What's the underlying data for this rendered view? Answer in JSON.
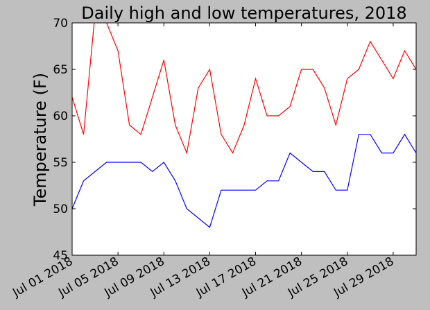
{
  "chart_data": {
    "type": "line",
    "title": "Daily high and low temperatures, 2018",
    "xlabel": "",
    "ylabel": "Temperature (F)",
    "x": [
      "2018-07-01",
      "2018-07-02",
      "2018-07-03",
      "2018-07-04",
      "2018-07-05",
      "2018-07-06",
      "2018-07-07",
      "2018-07-08",
      "2018-07-09",
      "2018-07-10",
      "2018-07-11",
      "2018-07-12",
      "2018-07-13",
      "2018-07-14",
      "2018-07-15",
      "2018-07-16",
      "2018-07-17",
      "2018-07-18",
      "2018-07-19",
      "2018-07-20",
      "2018-07-21",
      "2018-07-22",
      "2018-07-23",
      "2018-07-24",
      "2018-07-25",
      "2018-07-26",
      "2018-07-27",
      "2018-07-28",
      "2018-07-29",
      "2018-07-30",
      "2018-07-31"
    ],
    "x_range": [
      "2018-07-01",
      "2018-07-31"
    ],
    "xticks": [
      {
        "date": "2018-07-01",
        "label": "Jul 01 2018"
      },
      {
        "date": "2018-07-05",
        "label": "Jul 05 2018"
      },
      {
        "date": "2018-07-09",
        "label": "Jul 09 2018"
      },
      {
        "date": "2018-07-13",
        "label": "Jul 13 2018"
      },
      {
        "date": "2018-07-17",
        "label": "Jul 17 2018"
      },
      {
        "date": "2018-07-21",
        "label": "Jul 21 2018"
      },
      {
        "date": "2018-07-25",
        "label": "Jul 25 2018"
      },
      {
        "date": "2018-07-29",
        "label": "Jul 29 2018"
      }
    ],
    "ylim": [
      45,
      70
    ],
    "yticks": [
      45,
      50,
      55,
      60,
      65,
      70
    ],
    "grid": false,
    "series": [
      {
        "color": "#ff0000",
        "values": [
          62,
          58,
          71,
          70,
          67,
          59,
          58,
          62,
          66,
          59,
          56,
          63,
          65,
          58,
          56,
          59,
          64,
          60,
          60,
          61,
          65,
          65,
          63,
          59,
          64,
          65,
          68,
          66,
          64,
          67,
          65
        ]
      },
      {
        "color": "#0000ff",
        "values": [
          50,
          53,
          54,
          55,
          55,
          55,
          55,
          54,
          55,
          53,
          50,
          49,
          48,
          52,
          52,
          52,
          52,
          53,
          53,
          56,
          55,
          54,
          54,
          52,
          52,
          58,
          58,
          56,
          56,
          58,
          56
        ]
      }
    ]
  }
}
